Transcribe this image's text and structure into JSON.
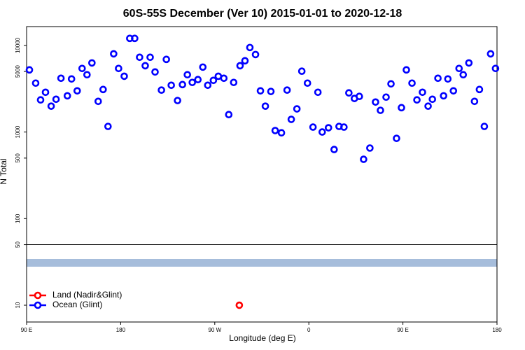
{
  "chart_data": {
    "type": "scatter",
    "title": "60S-55S December (Ver 10)   2015-01-01 to 2020-12-18",
    "x_label": "Longitude (deg E)",
    "y_label": "N Total",
    "log_y": true,
    "legend": "bottom-left",
    "xlim": [
      90,
      540
    ],
    "xticks": [
      {
        "value": 90,
        "label": "90 E"
      },
      180,
      {
        "value": 270,
        "label": "90 W"
      },
      0,
      {
        "value": 450,
        "label": "90 E"
      },
      180
    ],
    "ylim": [
      6.4,
      16500
    ],
    "yticks": [
      10,
      50,
      100,
      500,
      1000,
      5000,
      10000
    ],
    "series": [
      {
        "name": "Land (Nadir&Glint)",
        "color": "#ff0000",
        "x": [
          293.5
        ],
        "values": [
          10
        ]
      },
      {
        "name": "Ocean (Glint)",
        "color": "#0000ff",
        "x": [
          92.7,
          98.7,
          103.4,
          108.1,
          113.5,
          118.2,
          122.9,
          129.0,
          133.0,
          138.4,
          143.1,
          147.8,
          152.5,
          158.5,
          163.2,
          167.9,
          173.3,
          178.0,
          183.4,
          188.7,
          193.4,
          198.1,
          203.5,
          208.2,
          212.9,
          219.0,
          223.7,
          228.4,
          234.4,
          239.1,
          243.8,
          248.5,
          253.9,
          258.6,
          263.3,
          268.7,
          273.4,
          278.7,
          283.4,
          288.1,
          294.2,
          298.9,
          303.6,
          309.0,
          313.7,
          318.4,
          323.7,
          327.8,
          333.8,
          339.2,
          343.2,
          348.6,
          353.3,
          358.7,
          364.0,
          368.7,
          372.8,
          378.8,
          384.2,
          388.9,
          393.6,
          398.3,
          403.6,
          408.3,
          412.4,
          418.4,
          423.8,
          428.5,
          433.9,
          438.6,
          443.9,
          448.6,
          453.3,
          458.7,
          463.4,
          468.7,
          474.1,
          478.2,
          483.5,
          488.9,
          493.0,
          498.3,
          503.7,
          507.7,
          513.1,
          518.5,
          523.2,
          527.9,
          533.9,
          538.6
        ],
        "values": [
          5220,
          3670,
          2350,
          2880,
          1990,
          2390,
          4180,
          2620,
          4100,
          2990,
          5420,
          4590,
          6280,
          2260,
          3100,
          1160,
          8000,
          5420,
          4410,
          12060,
          12060,
          7300,
          5830,
          7300,
          4940,
          3050,
          6900,
          3470,
          2310,
          3530,
          4590,
          3740,
          4030,
          5620,
          3470,
          3950,
          4410,
          4180,
          1590,
          3740,
          5830,
          6650,
          9460,
          7850,
          2990,
          1990,
          2940,
          1040,
          980,
          3050,
          1400,
          1850,
          5040,
          3670,
          1140,
          2880,
          1000,
          1120,
          628,
          1160,
          1140,
          2830,
          2440,
          2580,
          484,
          653,
          2220,
          1780,
          2530,
          3600,
          845,
          1910,
          5220,
          3670,
          2350,
          2880,
          1990,
          2390,
          4180,
          2620,
          4100,
          2990,
          5420,
          4590,
          6280,
          2260,
          3100,
          1160,
          8000,
          5420
        ]
      }
    ]
  }
}
